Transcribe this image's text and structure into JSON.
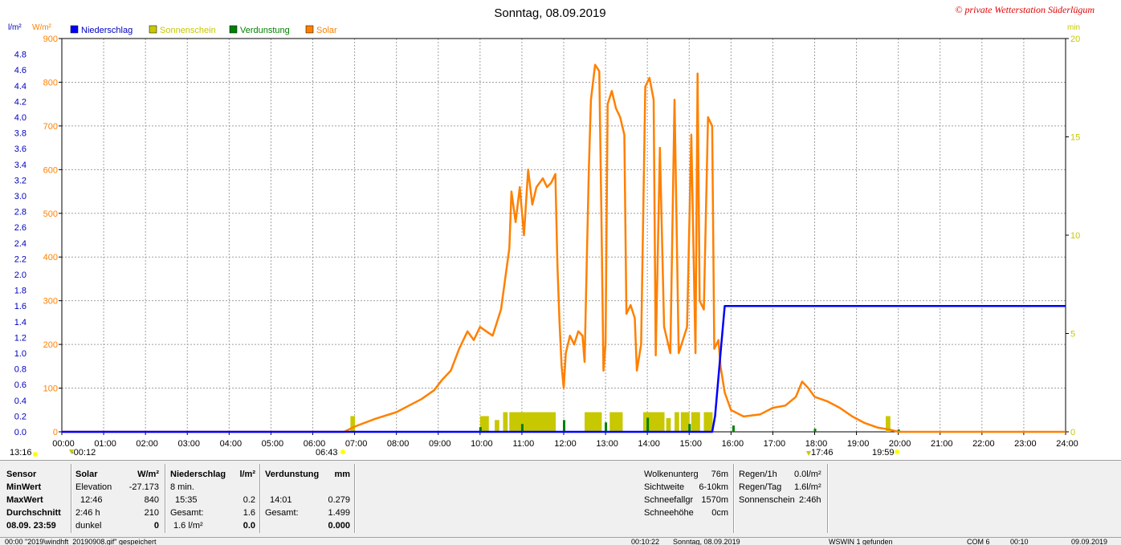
{
  "header": {
    "title": "Sonntag, 08.09.2019",
    "copyright": "© private Wetterstation Süderlügum",
    "left_unit1": "l/m²",
    "left_unit2": "W/m²",
    "right_unit": "min"
  },
  "legend": [
    {
      "label": "Niederschlag",
      "color": "#0000ff"
    },
    {
      "label": "Sonnenschein",
      "color": "#c8c800"
    },
    {
      "label": "Verdunstung",
      "color": "#008000"
    },
    {
      "label": "Solar",
      "color": "#ff8000"
    }
  ],
  "markers": {
    "left_time": "13:16",
    "moon_time": "-00:12",
    "sunrise": "06:43",
    "moonset": "17:46",
    "sunset": "19:59"
  },
  "chart_data": {
    "type": "line",
    "x_axis": {
      "range_hours": [
        0,
        24
      ],
      "tick_labels": [
        "00:00",
        "01:00",
        "02:00",
        "03:00",
        "04:00",
        "05:00",
        "06:00",
        "07:00",
        "08:00",
        "09:00",
        "10:00",
        "11:00",
        "12:00",
        "13:00",
        "14:00",
        "15:00",
        "16:00",
        "17:00",
        "18:00",
        "19:00",
        "20:00",
        "21:00",
        "22:00",
        "23:00",
        "24:00"
      ]
    },
    "y_solar": {
      "range": [
        0,
        900
      ],
      "ticks": [
        0,
        100,
        200,
        300,
        400,
        500,
        600,
        700,
        800,
        900
      ]
    },
    "y_rain": {
      "range": [
        0,
        5.0
      ],
      "ticks": [
        "0.0",
        "0.2",
        "0.4",
        "0.6",
        "0.8",
        "1.0",
        "1.2",
        "1.4",
        "1.6",
        "1.8",
        "2.0",
        "2.2",
        "2.4",
        "2.6",
        "2.8",
        "3.0",
        "3.2",
        "3.4",
        "3.6",
        "3.8",
        "4.0",
        "4.2",
        "4.4",
        "4.6",
        "4.8"
      ]
    },
    "y_sunshine": {
      "range": [
        0,
        20
      ],
      "ticks": [
        0,
        5,
        10,
        15,
        20
      ]
    },
    "grid": true,
    "series": [
      {
        "name": "Solar",
        "color": "#ff8000",
        "points": [
          [
            0,
            0
          ],
          [
            6.75,
            0
          ],
          [
            7.0,
            12
          ],
          [
            7.5,
            30
          ],
          [
            8.0,
            45
          ],
          [
            8.3,
            60
          ],
          [
            8.6,
            75
          ],
          [
            8.9,
            95
          ],
          [
            9.1,
            120
          ],
          [
            9.3,
            140
          ],
          [
            9.5,
            190
          ],
          [
            9.7,
            230
          ],
          [
            9.85,
            210
          ],
          [
            10.0,
            240
          ],
          [
            10.15,
            230
          ],
          [
            10.3,
            220
          ],
          [
            10.5,
            280
          ],
          [
            10.6,
            350
          ],
          [
            10.7,
            420
          ],
          [
            10.75,
            550
          ],
          [
            10.85,
            480
          ],
          [
            10.95,
            560
          ],
          [
            11.05,
            450
          ],
          [
            11.15,
            600
          ],
          [
            11.25,
            520
          ],
          [
            11.35,
            560
          ],
          [
            11.5,
            580
          ],
          [
            11.6,
            560
          ],
          [
            11.7,
            570
          ],
          [
            11.8,
            590
          ],
          [
            11.85,
            380
          ],
          [
            11.9,
            250
          ],
          [
            11.95,
            150
          ],
          [
            12.0,
            100
          ],
          [
            12.05,
            180
          ],
          [
            12.15,
            220
          ],
          [
            12.25,
            200
          ],
          [
            12.35,
            230
          ],
          [
            12.45,
            220
          ],
          [
            12.5,
            160
          ],
          [
            12.55,
            380
          ],
          [
            12.6,
            600
          ],
          [
            12.65,
            760
          ],
          [
            12.75,
            840
          ],
          [
            12.85,
            825
          ],
          [
            12.9,
            500
          ],
          [
            12.95,
            140
          ],
          [
            13.0,
            200
          ],
          [
            13.05,
            750
          ],
          [
            13.15,
            780
          ],
          [
            13.25,
            740
          ],
          [
            13.35,
            720
          ],
          [
            13.45,
            680
          ],
          [
            13.5,
            270
          ],
          [
            13.6,
            290
          ],
          [
            13.7,
            260
          ],
          [
            13.75,
            140
          ],
          [
            13.85,
            200
          ],
          [
            13.95,
            790
          ],
          [
            14.05,
            810
          ],
          [
            14.15,
            760
          ],
          [
            14.2,
            175
          ],
          [
            14.3,
            650
          ],
          [
            14.4,
            240
          ],
          [
            14.55,
            180
          ],
          [
            14.65,
            760
          ],
          [
            14.75,
            180
          ],
          [
            14.85,
            210
          ],
          [
            14.95,
            240
          ],
          [
            15.05,
            680
          ],
          [
            15.15,
            180
          ],
          [
            15.2,
            820
          ],
          [
            15.25,
            300
          ],
          [
            15.35,
            280
          ],
          [
            15.45,
            720
          ],
          [
            15.55,
            700
          ],
          [
            15.6,
            190
          ],
          [
            15.7,
            210
          ],
          [
            15.75,
            150
          ],
          [
            15.85,
            90
          ],
          [
            16.0,
            50
          ],
          [
            16.3,
            35
          ],
          [
            16.7,
            40
          ],
          [
            17.0,
            55
          ],
          [
            17.3,
            60
          ],
          [
            17.55,
            80
          ],
          [
            17.7,
            115
          ],
          [
            17.85,
            100
          ],
          [
            18.0,
            80
          ],
          [
            18.3,
            70
          ],
          [
            18.6,
            55
          ],
          [
            18.9,
            35
          ],
          [
            19.2,
            20
          ],
          [
            19.5,
            10
          ],
          [
            19.8,
            5
          ],
          [
            20.0,
            0
          ],
          [
            24.0,
            0
          ]
        ]
      },
      {
        "name": "Niederschlag",
        "color": "#0000ff",
        "points": [
          [
            0,
            0
          ],
          [
            15.55,
            0
          ],
          [
            15.62,
            0.2
          ],
          [
            15.75,
            1.0
          ],
          [
            15.85,
            1.6
          ],
          [
            24.0,
            1.6
          ]
        ]
      },
      {
        "name": "Sonnenschein",
        "color": "#c8c800",
        "bars": [
          [
            6.9,
            0.8
          ],
          [
            10.0,
            0.8
          ],
          [
            10.1,
            0.8
          ],
          [
            10.35,
            0.6
          ],
          [
            10.55,
            1.0
          ],
          [
            10.7,
            1.0
          ],
          [
            10.8,
            1.0
          ],
          [
            10.9,
            1.0
          ],
          [
            11.0,
            1.0
          ],
          [
            11.1,
            1.0
          ],
          [
            11.2,
            1.0
          ],
          [
            11.3,
            1.0
          ],
          [
            11.4,
            1.0
          ],
          [
            11.5,
            1.0
          ],
          [
            11.6,
            1.0
          ],
          [
            11.7,
            1.0
          ],
          [
            12.5,
            1.0
          ],
          [
            12.6,
            1.0
          ],
          [
            12.7,
            1.0
          ],
          [
            12.8,
            1.0
          ],
          [
            13.1,
            1.0
          ],
          [
            13.2,
            1.0
          ],
          [
            13.3,
            1.0
          ],
          [
            13.9,
            1.0
          ],
          [
            14.0,
            1.0
          ],
          [
            14.1,
            1.0
          ],
          [
            14.2,
            1.0
          ],
          [
            14.3,
            1.0
          ],
          [
            14.45,
            0.7
          ],
          [
            14.65,
            1.0
          ],
          [
            14.8,
            1.0
          ],
          [
            14.9,
            1.0
          ],
          [
            15.05,
            1.0
          ],
          [
            15.15,
            1.0
          ],
          [
            15.35,
            1.0
          ],
          [
            15.45,
            1.0
          ],
          [
            19.7,
            0.8
          ]
        ]
      },
      {
        "name": "Verdunstung",
        "color": "#008000",
        "bars": [
          [
            10.0,
            0.06
          ],
          [
            11.0,
            0.1
          ],
          [
            12.0,
            0.15
          ],
          [
            13.0,
            0.12
          ],
          [
            14.0,
            0.18
          ],
          [
            15.0,
            0.1
          ],
          [
            16.05,
            0.08
          ],
          [
            18.0,
            0.04
          ],
          [
            20.0,
            0.03
          ],
          [
            9.0,
            0.01
          ],
          [
            8.0,
            0.005
          ]
        ]
      }
    ]
  },
  "panel": {
    "col1": {
      "sensor": "Sensor",
      "min": "MinWert",
      "max": "MaxWert",
      "avg": "Durchschnitt",
      "date": "08.09.  23:59"
    },
    "solar": {
      "title": "Solar",
      "unit": "W/m²",
      "min_label": "Elevation",
      "min_val": "-27.173",
      "max_time": "12:46",
      "max_val": "840",
      "avg_label": "2:46 h",
      "avg_val": "210",
      "last": "dunkel",
      "last_val": "0"
    },
    "rain": {
      "title": "Niederschlag",
      "unit": "l/m²",
      "min_label": "8 min.",
      "max_time": "15:35",
      "max_val": "0.2",
      "avg_label": "Gesamt:",
      "avg_val": "1.6",
      "last": "1.6 l/m²",
      "last_val": "0.0"
    },
    "evap": {
      "title": "Verdunstung",
      "unit": "mm",
      "max_time": "14:01",
      "max_val": "0.279",
      "avg_label": "Gesamt:",
      "avg_val": "1.499",
      "last_val": "0.000"
    },
    "weather": [
      {
        "label": "Wolkenunterg",
        "value": "76m"
      },
      {
        "label": "Sichtweite",
        "value": "6-10km"
      },
      {
        "label": "Schneefallgr",
        "value": "1570m"
      },
      {
        "label": "Schneehöhe",
        "value": "0cm"
      }
    ],
    "rain_info": [
      {
        "label": "Regen/1h",
        "value": "0.0l/m²"
      },
      {
        "label": "Regen/Tag",
        "value": "1.6l/m²"
      },
      {
        "label": "Sonnenschein",
        "value": "2:46h"
      }
    ]
  },
  "status": {
    "s1": "00:00  \"2019\\windhft_20190908.gif\" gespeichert",
    "s2": "00:10:22",
    "s3": "Sonntag, 08.09.2019",
    "s4": "WSWIN 1 gefunden",
    "s5": "COM 6",
    "s6": "00:10",
    "s7": "09.09.2019"
  }
}
